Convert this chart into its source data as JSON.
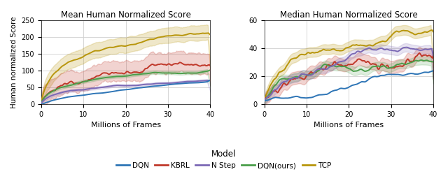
{
  "title_left": "Mean Human Normalized Score",
  "title_right": "Median Human Normalized Score",
  "xlabel": "Millions of Frames",
  "ylabel": "Human normalized Score",
  "legend_title": "Model",
  "xlim": [
    0,
    40
  ],
  "ylim_left": [
    0,
    250
  ],
  "ylim_right": [
    0,
    60
  ],
  "yticks_left": [
    0,
    50,
    100,
    150,
    200,
    250
  ],
  "yticks_right": [
    0,
    20,
    40,
    60
  ],
  "xticks": [
    0,
    10,
    20,
    30,
    40
  ],
  "colors": {
    "DQN": "#2e75b6",
    "KBRL": "#c0392b",
    "N Step": "#7b68b5",
    "DQN(ours)": "#4a9e4a",
    "TCP": "#b8960c"
  },
  "legend_labels": [
    "DQN",
    "KBRL",
    "N Step",
    "DQN(ours)",
    "TCP"
  ]
}
